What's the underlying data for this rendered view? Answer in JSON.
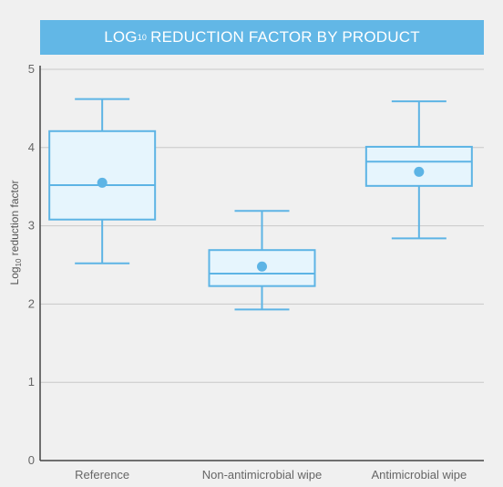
{
  "chart_data": {
    "type": "box",
    "title_main": "LOG",
    "title_sub": "10",
    "title_rest": "REDUCTION FACTOR BY PRODUCT",
    "ylabel_main": "Log",
    "ylabel_sub": "10",
    "ylabel_rest": " reduction factor",
    "ylim": [
      0,
      5
    ],
    "yticks": [
      0,
      1,
      2,
      3,
      4,
      5
    ],
    "grid": true,
    "colors": {
      "box_fill": "#e6f5fd",
      "box_stroke": "#5db4e5",
      "mean_dot": "#5db4e5",
      "grid": "#c8c8c8",
      "banner": "#62b7e6"
    },
    "categories": [
      "Reference",
      "Non-antimicrobial wipe",
      "Antimicrobial wipe"
    ],
    "boxes": [
      {
        "whisker_low": 2.52,
        "q1": 3.08,
        "median": 3.52,
        "q3": 4.21,
        "whisker_high": 4.62,
        "mean": 3.55
      },
      {
        "whisker_low": 1.93,
        "q1": 2.23,
        "median": 2.39,
        "q3": 2.69,
        "whisker_high": 3.19,
        "mean": 2.48
      },
      {
        "whisker_low": 2.84,
        "q1": 3.51,
        "median": 3.82,
        "q3": 4.01,
        "whisker_high": 4.59,
        "mean": 3.69
      }
    ]
  }
}
